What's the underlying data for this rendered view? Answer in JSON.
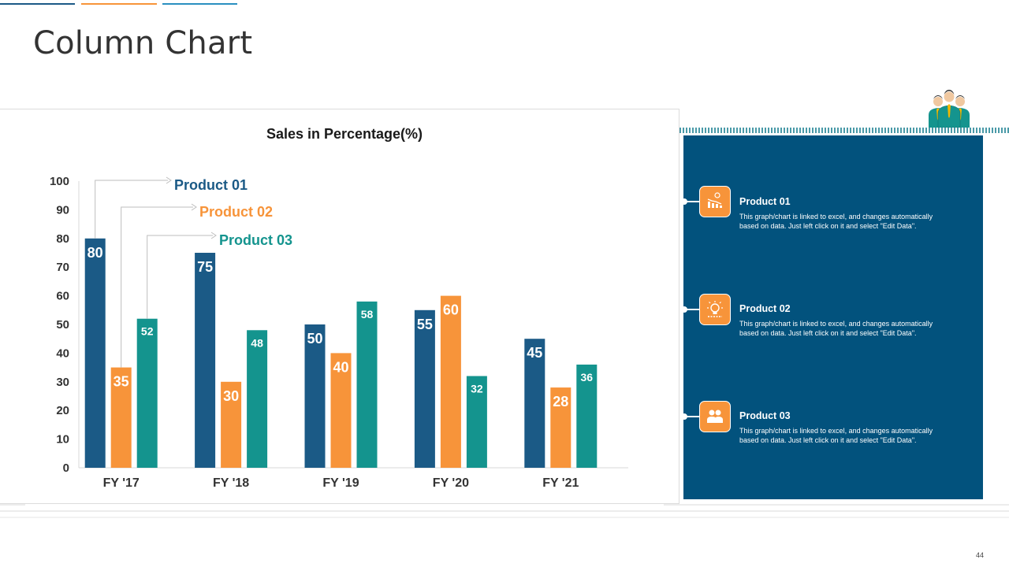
{
  "title": "Column Chart",
  "page_number": "44",
  "colors": {
    "product01": "#1b5a86",
    "product02": "#f7943a",
    "product03": "#14948e",
    "panel": "#02527d",
    "text": "#333333"
  },
  "chart_data": {
    "type": "bar",
    "title": "Sales in Percentage(%)",
    "categories": [
      "FY '17",
      "FY '18",
      "FY '19",
      "FY '20",
      "FY '21"
    ],
    "series": [
      {
        "name": "Product 01",
        "values": [
          80,
          75,
          50,
          55,
          45
        ]
      },
      {
        "name": "Product 02",
        "values": [
          35,
          30,
          40,
          60,
          28
        ]
      },
      {
        "name": "Product 03",
        "values": [
          52,
          48,
          58,
          32,
          36
        ]
      }
    ],
    "ylim": [
      0,
      100
    ],
    "yticks": [
      0,
      10,
      20,
      30,
      40,
      50,
      60,
      70,
      80,
      90,
      100
    ],
    "xlabel": "",
    "ylabel": ""
  },
  "panel": {
    "items": [
      {
        "title": "Product 01",
        "description": "This graph/chart is linked to excel, and changes automatically based on data. Just left click on it and select \"Edit Data\".",
        "icon": "declining-chart-icon"
      },
      {
        "title": "Product 02",
        "description": "This graph/chart is linked to excel, and changes automatically based on data. Just left click on it and select \"Edit Data\".",
        "icon": "idea-bulb-icon"
      },
      {
        "title": "Product 03",
        "description": "This graph/chart is linked to excel, and changes automatically based on data. Just left click on it and select \"Edit Data\".",
        "icon": "team-icon"
      }
    ]
  }
}
